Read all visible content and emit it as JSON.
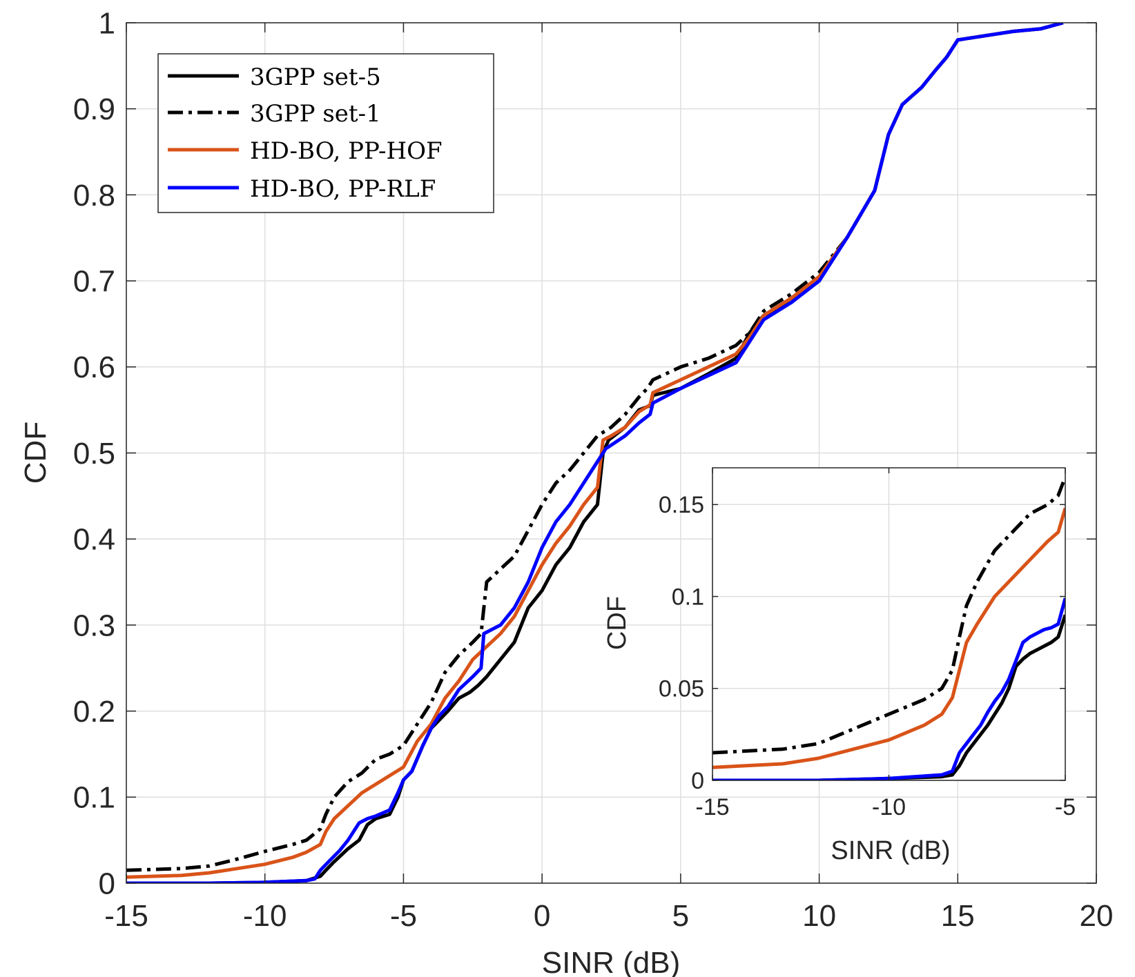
{
  "chart_data": [
    {
      "type": "line",
      "name": "main",
      "title": "",
      "xlabel": "SINR (dB)",
      "ylabel": "CDF",
      "xlim": [
        -15,
        20
      ],
      "ylim": [
        0,
        1
      ],
      "xticks": [
        -15,
        -10,
        -5,
        0,
        5,
        10,
        15,
        20
      ],
      "xtick_labels": [
        "-15",
        "-10",
        "-5",
        "0",
        "5",
        "10",
        "15",
        "20"
      ],
      "yticks": [
        0,
        0.1,
        0.2,
        0.3,
        0.4,
        0.5,
        0.6,
        0.7,
        0.8,
        0.9,
        1
      ],
      "ytick_labels": [
        "0",
        "0.1",
        "0.2",
        "0.3",
        "0.4",
        "0.5",
        "0.6",
        "0.7",
        "0.8",
        "0.9",
        "1"
      ],
      "grid": true,
      "legend_position": "top-left",
      "series": [
        {
          "name": "3GPP set-5",
          "color": "#000000",
          "style": "solid",
          "x": [
            -15,
            -12,
            -10,
            -8.5,
            -8.0,
            -7.8,
            -7.5,
            -7.0,
            -6.6,
            -6.3,
            -6.0,
            -5.5,
            -5.2,
            -5.0,
            -4.7,
            -4.3,
            -4.0,
            -3.7,
            -3.4,
            -3.0,
            -2.6,
            -2.3,
            -2.0,
            -1.5,
            -1.0,
            -0.5,
            0,
            0.5,
            1.0,
            1.5,
            2.0,
            2.2,
            2.4,
            3.0,
            3.5,
            3.9,
            4.0,
            5.0,
            6.0,
            7.0,
            7.5,
            8.0,
            9.0,
            10.0,
            11.0,
            12.0,
            12.5,
            13.0,
            13.7,
            14.2,
            14.6,
            15.0,
            16.0,
            17.0,
            18.0,
            18.8
          ],
          "y": [
            0,
            0,
            0.001,
            0.003,
            0.008,
            0.015,
            0.025,
            0.04,
            0.05,
            0.068,
            0.075,
            0.08,
            0.1,
            0.12,
            0.13,
            0.16,
            0.18,
            0.19,
            0.2,
            0.215,
            0.222,
            0.23,
            0.24,
            0.26,
            0.28,
            0.32,
            0.34,
            0.37,
            0.39,
            0.42,
            0.44,
            0.5,
            0.515,
            0.53,
            0.55,
            0.555,
            0.567,
            0.575,
            0.592,
            0.61,
            0.64,
            0.66,
            0.675,
            0.705,
            0.75,
            0.805,
            0.87,
            0.905,
            0.925,
            0.945,
            0.96,
            0.98,
            0.985,
            0.99,
            0.993,
            1.0
          ]
        },
        {
          "name": "3GPP set-1",
          "color": "#000000",
          "style": "dashdot",
          "x": [
            -15,
            -13,
            -12,
            -11,
            -10,
            -9,
            -8.5,
            -8,
            -7.8,
            -7.5,
            -7,
            -6.5,
            -6.0,
            -5.5,
            -5.0,
            -4.5,
            -4.0,
            -3.5,
            -3.0,
            -2.5,
            -2.2,
            -2.0,
            -1.5,
            -1.0,
            -0.5,
            0,
            0.5,
            1.0,
            1.5,
            2.0,
            2.5,
            3.0,
            3.5,
            3.8,
            4.0,
            5.0,
            6.0,
            7.0,
            7.5,
            8.0,
            9.0,
            10.0,
            11.0,
            12.0,
            12.5,
            13.0,
            13.7,
            14.2,
            14.6,
            15.0,
            16.0,
            17.0,
            18.0,
            18.8
          ],
          "y": [
            0.015,
            0.017,
            0.02,
            0.028,
            0.037,
            0.045,
            0.05,
            0.063,
            0.08,
            0.1,
            0.118,
            0.128,
            0.144,
            0.15,
            0.16,
            0.185,
            0.21,
            0.245,
            0.265,
            0.28,
            0.29,
            0.35,
            0.365,
            0.38,
            0.41,
            0.44,
            0.465,
            0.48,
            0.5,
            0.52,
            0.53,
            0.545,
            0.565,
            0.575,
            0.585,
            0.6,
            0.61,
            0.625,
            0.64,
            0.665,
            0.685,
            0.71,
            0.75,
            0.805,
            0.87,
            0.905,
            0.925,
            0.945,
            0.96,
            0.98,
            0.985,
            0.99,
            0.993,
            1.0
          ]
        },
        {
          "name": "HD-BO, PP-HOF",
          "color": "#D95319",
          "style": "solid",
          "x": [
            -15,
            -13,
            -12,
            -11,
            -10,
            -9,
            -8.5,
            -8,
            -7.8,
            -7.5,
            -7,
            -6.5,
            -6.0,
            -5.5,
            -5.0,
            -4.5,
            -4.0,
            -3.5,
            -3.0,
            -2.5,
            -2.0,
            -1.5,
            -1.0,
            -0.5,
            0,
            0.5,
            1.0,
            1.5,
            2.0,
            2.2,
            2.5,
            3.0,
            3.5,
            3.9,
            4.0,
            5.0,
            6.0,
            7.0,
            7.5,
            8.0,
            9.0,
            10.0,
            11.0,
            12.0,
            12.5,
            13.0,
            13.7,
            14.2,
            14.6,
            15.0,
            16.0,
            17.0,
            18.0,
            18.8
          ],
          "y": [
            0.007,
            0.009,
            0.012,
            0.017,
            0.022,
            0.03,
            0.036,
            0.045,
            0.06,
            0.075,
            0.09,
            0.105,
            0.115,
            0.125,
            0.135,
            0.165,
            0.185,
            0.215,
            0.235,
            0.26,
            0.275,
            0.29,
            0.31,
            0.34,
            0.37,
            0.395,
            0.415,
            0.44,
            0.46,
            0.515,
            0.52,
            0.53,
            0.548,
            0.556,
            0.57,
            0.585,
            0.6,
            0.615,
            0.635,
            0.66,
            0.68,
            0.705,
            0.75,
            0.805,
            0.87,
            0.905,
            0.925,
            0.945,
            0.96,
            0.98,
            0.985,
            0.99,
            0.993,
            1.0
          ]
        },
        {
          "name": "HD-BO, PP-RLF",
          "color": "#0000FF",
          "style": "solid",
          "x": [
            -15,
            -12,
            -10,
            -8.5,
            -8.2,
            -8.0,
            -7.7,
            -7.3,
            -7.0,
            -6.6,
            -6.3,
            -6.0,
            -5.5,
            -5.2,
            -5.0,
            -4.7,
            -4.3,
            -4.0,
            -3.7,
            -3.4,
            -3.0,
            -2.5,
            -2.2,
            -2.1,
            -1.5,
            -1.0,
            -0.5,
            0,
            0.5,
            1.0,
            1.5,
            2.0,
            2.3,
            3.0,
            3.5,
            3.9,
            4.0,
            5.0,
            6.0,
            7.0,
            7.5,
            8.0,
            9.0,
            10.0,
            11.0,
            12.0,
            12.5,
            13.0,
            13.7,
            14.2,
            14.6,
            15.0,
            16.0,
            17.0,
            18.0,
            18.8
          ],
          "y": [
            0,
            0,
            0.001,
            0.003,
            0.005,
            0.015,
            0.025,
            0.038,
            0.05,
            0.07,
            0.075,
            0.078,
            0.085,
            0.105,
            0.12,
            0.13,
            0.16,
            0.18,
            0.195,
            0.205,
            0.225,
            0.24,
            0.25,
            0.29,
            0.3,
            0.32,
            0.35,
            0.39,
            0.42,
            0.44,
            0.465,
            0.49,
            0.505,
            0.52,
            0.535,
            0.545,
            0.558,
            0.575,
            0.59,
            0.605,
            0.63,
            0.655,
            0.675,
            0.7,
            0.75,
            0.805,
            0.87,
            0.905,
            0.925,
            0.945,
            0.96,
            0.98,
            0.985,
            0.99,
            0.993,
            1.0
          ]
        }
      ]
    },
    {
      "type": "line",
      "name": "inset",
      "title": "",
      "xlabel": "SINR (dB)",
      "ylabel": "CDF",
      "xlim": [
        -15,
        -5
      ],
      "ylim": [
        0,
        0.17
      ],
      "xticks": [
        -15,
        -10,
        -5
      ],
      "xtick_labels": [
        "-15",
        "-10",
        "-5"
      ],
      "yticks": [
        0,
        0.05,
        0.1,
        0.15
      ],
      "ytick_labels": [
        "0",
        "0.05",
        "0.1",
        "0.15"
      ],
      "grid": true,
      "series": [
        {
          "name": "3GPP set-5",
          "color": "#000000",
          "style": "solid",
          "x": [
            -15,
            -12,
            -10,
            -8.5,
            -8.2,
            -8.0,
            -7.8,
            -7.6,
            -7.4,
            -7.2,
            -7.0,
            -6.8,
            -6.6,
            -6.4,
            -6.2,
            -6.0,
            -5.8,
            -5.6,
            -5.4,
            -5.2,
            -5.0
          ],
          "y": [
            0,
            0,
            0.001,
            0.002,
            0.003,
            0.008,
            0.015,
            0.02,
            0.025,
            0.03,
            0.036,
            0.042,
            0.05,
            0.062,
            0.066,
            0.069,
            0.071,
            0.073,
            0.075,
            0.078,
            0.09
          ]
        },
        {
          "name": "3GPP set-1",
          "color": "#000000",
          "style": "dashdot",
          "x": [
            -15,
            -13,
            -12,
            -11,
            -10,
            -9,
            -8.5,
            -8.2,
            -8.0,
            -7.8,
            -7.5,
            -7.0,
            -6.5,
            -6.0,
            -5.5,
            -5.2,
            -5.0
          ],
          "y": [
            0.015,
            0.017,
            0.02,
            0.028,
            0.036,
            0.044,
            0.05,
            0.06,
            0.078,
            0.095,
            0.108,
            0.125,
            0.135,
            0.145,
            0.15,
            0.155,
            0.165
          ]
        },
        {
          "name": "HD-BO, PP-HOF",
          "color": "#D95319",
          "style": "solid",
          "x": [
            -15,
            -13,
            -12,
            -11,
            -10,
            -9,
            -8.5,
            -8.2,
            -8.0,
            -7.8,
            -7.5,
            -7.0,
            -6.5,
            -6.0,
            -5.5,
            -5.2,
            -5.0
          ],
          "y": [
            0.007,
            0.009,
            0.012,
            0.017,
            0.022,
            0.03,
            0.036,
            0.045,
            0.06,
            0.075,
            0.085,
            0.1,
            0.11,
            0.12,
            0.13,
            0.135,
            0.148
          ]
        },
        {
          "name": "HD-BO, PP-RLF",
          "color": "#0000FF",
          "style": "solid",
          "x": [
            -15,
            -12,
            -10,
            -8.5,
            -8.2,
            -8.0,
            -7.8,
            -7.6,
            -7.4,
            -7.2,
            -7.0,
            -6.8,
            -6.6,
            -6.4,
            -6.2,
            -6.0,
            -5.8,
            -5.6,
            -5.4,
            -5.2,
            -5.0
          ],
          "y": [
            0,
            0,
            0.001,
            0.003,
            0.005,
            0.015,
            0.02,
            0.025,
            0.03,
            0.037,
            0.043,
            0.048,
            0.055,
            0.065,
            0.075,
            0.078,
            0.08,
            0.082,
            0.083,
            0.085,
            0.099
          ]
        }
      ]
    }
  ]
}
